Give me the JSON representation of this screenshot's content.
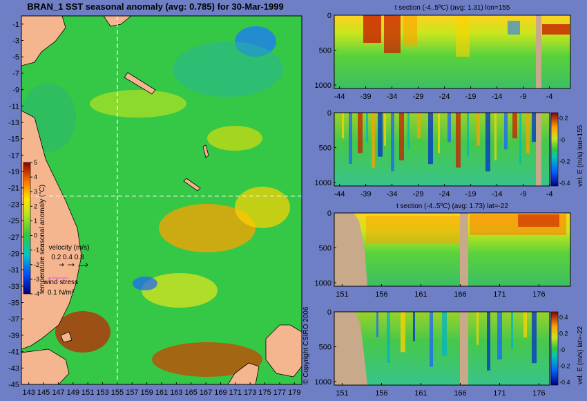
{
  "colors": {
    "background": "#6e7fc6",
    "land": "#f5b58f",
    "section_land": "#c8a98a",
    "ocean_base": "#35c847",
    "guide_line": "#ffffff"
  },
  "chart_data": [
    {
      "type": "heatmap",
      "id": "map",
      "title": "BRAN_1 SST seasonal anomaly (avg: 0.785) for 30-Mar-1999",
      "x_ticks": [
        "143",
        "145",
        "147",
        "149",
        "151",
        "153",
        "155",
        "157",
        "159",
        "161",
        "163",
        "165",
        "167",
        "169",
        "171",
        "173",
        "175",
        "177",
        "179"
      ],
      "y_ticks": [
        "-1",
        "-3",
        "-5",
        "-7",
        "-9",
        "-11",
        "-13",
        "-15",
        "-17",
        "-19",
        "-21",
        "-23",
        "-25",
        "-27",
        "-29",
        "-31",
        "-33",
        "-35",
        "-37",
        "-39",
        "-41",
        "-43",
        "-45"
      ],
      "xlim": [
        142,
        180
      ],
      "ylim": [
        -45,
        0
      ],
      "guide_lon": 155,
      "guide_lat": -22,
      "colorbar": {
        "label": "temperature seasonal anomaly (°C)",
        "ticks": [
          "5",
          "4",
          "3",
          "2",
          "1",
          "0",
          "-1",
          "-2",
          "-3",
          "-4"
        ],
        "range": [
          -4,
          5
        ]
      },
      "legend": {
        "velocity_label": "velocity (m/s)",
        "velocity_scale": "0.2 0.4 0.8",
        "wind_label": "wind stress",
        "wind_scale": "0.1 N/m²"
      },
      "copyright": "© Copyright CSIRO 2006"
    },
    {
      "type": "heatmap",
      "id": "sec1",
      "title": "t section (-4..5ºC) (avg: 1.31) lon=155",
      "x_ticks": [
        "-44",
        "-39",
        "-34",
        "-29",
        "-24",
        "-19",
        "-14",
        "-9",
        "-4"
      ],
      "y_ticks": [
        "0",
        "500",
        "1000"
      ],
      "xlim": [
        -45,
        0
      ],
      "ylim": [
        0,
        1050
      ]
    },
    {
      "type": "heatmap",
      "id": "sec2",
      "title": "",
      "x_ticks": [
        "-44",
        "-39",
        "-34",
        "-29",
        "-24",
        "-19",
        "-14",
        "-9",
        "-4"
      ],
      "y_ticks": [
        "0",
        "500",
        "1000"
      ],
      "xlim": [
        -45,
        0
      ],
      "ylim": [
        0,
        1050
      ],
      "side_label": "vel. E (m/s) lon=155",
      "colorbar_ticks": [
        "0.2",
        "-0",
        "-0.2",
        "-0.4"
      ]
    },
    {
      "type": "heatmap",
      "id": "sec3",
      "title": "t section (-4..5ºC) (avg: 1.73) lat=-22",
      "x_ticks": [
        "151",
        "156",
        "161",
        "166",
        "171",
        "176"
      ],
      "y_ticks": [
        "0",
        "500",
        "1000"
      ],
      "xlim": [
        150,
        180
      ],
      "ylim": [
        0,
        1050
      ]
    },
    {
      "type": "heatmap",
      "id": "sec4",
      "title": "",
      "x_ticks": [
        "151",
        "156",
        "161",
        "166",
        "171",
        "176"
      ],
      "y_ticks": [
        "0",
        "500",
        "1000"
      ],
      "xlim": [
        150,
        180
      ],
      "ylim": [
        0,
        1050
      ],
      "side_label": "vel. E (m/s) lat=-22",
      "colorbar_ticks": [
        "0.4",
        "0.2",
        "-0",
        "-0.2",
        "-0.4"
      ]
    }
  ]
}
